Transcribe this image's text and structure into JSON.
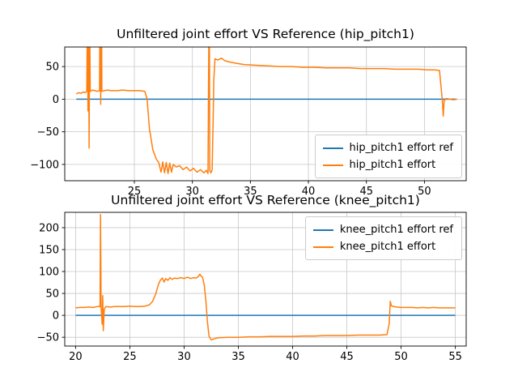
{
  "figure": {
    "background": "#ffffff",
    "grid_color": "#c8c8c8",
    "spine_color": "#000000"
  },
  "chart_data": [
    {
      "type": "line",
      "title": "Unfiltered joint effort VS Reference (hip_pitch1)",
      "xlabel": "",
      "ylabel": "",
      "xlim": [
        19.0,
        53.6
      ],
      "ylim": [
        -125,
        80
      ],
      "xticks": [
        25,
        30,
        35,
        40,
        45,
        50
      ],
      "yticks": [
        -100,
        -50,
        0,
        50
      ],
      "grid": true,
      "legend_position": "lower right",
      "series": [
        {
          "name": "hip_pitch1 effort ref",
          "color": "#1f77b4",
          "points": [
            [
              20.0,
              0
            ],
            [
              52.8,
              0
            ]
          ]
        },
        {
          "name": "hip_pitch1 effort",
          "color": "#ff7f0e",
          "points": [
            [
              20.0,
              8
            ],
            [
              20.2,
              10
            ],
            [
              20.4,
              9
            ],
            [
              20.6,
              11
            ],
            [
              20.75,
              10
            ],
            [
              20.9,
              12
            ],
            [
              20.95,
              130
            ],
            [
              21.0,
              -18
            ],
            [
              21.05,
              120
            ],
            [
              21.1,
              -75
            ],
            [
              21.15,
              130
            ],
            [
              21.2,
              12
            ],
            [
              21.4,
              14
            ],
            [
              21.6,
              13
            ],
            [
              21.8,
              12
            ],
            [
              22.0,
              13
            ],
            [
              22.05,
              200
            ],
            [
              22.1,
              -8
            ],
            [
              22.15,
              190
            ],
            [
              22.2,
              12
            ],
            [
              22.4,
              13
            ],
            [
              22.7,
              14
            ],
            [
              23.0,
              13
            ],
            [
              23.5,
              13
            ],
            [
              24.0,
              14
            ],
            [
              24.5,
              13
            ],
            [
              25.0,
              13
            ],
            [
              25.5,
              13
            ],
            [
              25.9,
              12
            ],
            [
              26.1,
              0
            ],
            [
              26.3,
              -45
            ],
            [
              26.6,
              -78
            ],
            [
              26.9,
              -92
            ],
            [
              27.1,
              -97
            ],
            [
              27.3,
              -112
            ],
            [
              27.45,
              -96
            ],
            [
              27.6,
              -113
            ],
            [
              27.75,
              -97
            ],
            [
              27.9,
              -114
            ],
            [
              28.05,
              -98
            ],
            [
              28.2,
              -112
            ],
            [
              28.35,
              -100
            ],
            [
              28.6,
              -104
            ],
            [
              28.9,
              -102
            ],
            [
              29.2,
              -108
            ],
            [
              29.5,
              -104
            ],
            [
              29.8,
              -110
            ],
            [
              30.1,
              -106
            ],
            [
              30.4,
              -112
            ],
            [
              30.7,
              -108
            ],
            [
              31.0,
              -113
            ],
            [
              31.2,
              -109
            ],
            [
              31.35,
              -114
            ],
            [
              31.45,
              200
            ],
            [
              31.5,
              -110
            ],
            [
              31.6,
              -113
            ],
            [
              31.7,
              -108
            ],
            [
              31.78,
              -40
            ],
            [
              31.85,
              30
            ],
            [
              31.95,
              62
            ],
            [
              32.2,
              60
            ],
            [
              32.5,
              63
            ],
            [
              32.8,
              59
            ],
            [
              33.2,
              57
            ],
            [
              33.8,
              55
            ],
            [
              34.5,
              53
            ],
            [
              35.5,
              52
            ],
            [
              36.5,
              51
            ],
            [
              37.5,
              50
            ],
            [
              38.5,
              50
            ],
            [
              39.5,
              49
            ],
            [
              40.5,
              49
            ],
            [
              41.5,
              48
            ],
            [
              42.5,
              48
            ],
            [
              43.5,
              48
            ],
            [
              44.5,
              47
            ],
            [
              45.5,
              47
            ],
            [
              46.5,
              47
            ],
            [
              47.5,
              46
            ],
            [
              48.5,
              46
            ],
            [
              49.5,
              46
            ],
            [
              50.3,
              45
            ],
            [
              50.9,
              45
            ],
            [
              51.3,
              44
            ],
            [
              51.45,
              15
            ],
            [
              51.55,
              -3
            ],
            [
              51.62,
              -26
            ],
            [
              51.7,
              -2
            ],
            [
              51.9,
              1
            ],
            [
              52.2,
              0
            ],
            [
              52.5,
              -1
            ],
            [
              52.8,
              0
            ]
          ]
        }
      ]
    },
    {
      "type": "line",
      "title": "Unfiltered joint effort VS Reference (knee_pitch1)",
      "xlabel": "",
      "ylabel": "",
      "xlim": [
        19.0,
        56.0
      ],
      "ylim": [
        -70,
        235
      ],
      "xticks": [
        20,
        25,
        30,
        35,
        40,
        45,
        50,
        55
      ],
      "yticks": [
        -50,
        0,
        50,
        100,
        150,
        200
      ],
      "grid": true,
      "legend_position": "upper right",
      "series": [
        {
          "name": "knee_pitch1 effort ref",
          "color": "#1f77b4",
          "points": [
            [
              20.0,
              0
            ],
            [
              55.0,
              0
            ]
          ]
        },
        {
          "name": "knee_pitch1 effort",
          "color": "#ff7f0e",
          "points": [
            [
              20.0,
              17
            ],
            [
              20.4,
              18
            ],
            [
              20.8,
              18
            ],
            [
              21.2,
              19
            ],
            [
              21.6,
              18
            ],
            [
              22.0,
              20
            ],
            [
              22.25,
              20
            ],
            [
              22.3,
              230
            ],
            [
              22.35,
              18
            ],
            [
              22.45,
              -20
            ],
            [
              22.5,
              45
            ],
            [
              22.55,
              -35
            ],
            [
              22.65,
              15
            ],
            [
              22.8,
              20
            ],
            [
              23.2,
              19
            ],
            [
              23.6,
              20
            ],
            [
              24.0,
              20
            ],
            [
              24.5,
              20
            ],
            [
              25.0,
              21
            ],
            [
              25.5,
              20
            ],
            [
              26.0,
              20
            ],
            [
              26.4,
              21
            ],
            [
              26.8,
              24
            ],
            [
              27.1,
              32
            ],
            [
              27.4,
              50
            ],
            [
              27.6,
              68
            ],
            [
              27.8,
              80
            ],
            [
              28.0,
              85
            ],
            [
              28.15,
              76
            ],
            [
              28.3,
              84
            ],
            [
              28.5,
              80
            ],
            [
              28.7,
              86
            ],
            [
              28.9,
              82
            ],
            [
              29.1,
              85
            ],
            [
              29.4,
              84
            ],
            [
              29.7,
              86
            ],
            [
              30.0,
              84
            ],
            [
              30.3,
              87
            ],
            [
              30.6,
              84
            ],
            [
              30.9,
              86
            ],
            [
              31.1,
              85
            ],
            [
              31.3,
              88
            ],
            [
              31.45,
              94
            ],
            [
              31.55,
              90
            ],
            [
              31.7,
              87
            ],
            [
              31.85,
              70
            ],
            [
              32.0,
              35
            ],
            [
              32.15,
              -15
            ],
            [
              32.3,
              -48
            ],
            [
              32.5,
              -56
            ],
            [
              32.8,
              -53
            ],
            [
              33.2,
              -51
            ],
            [
              34.0,
              -50
            ],
            [
              35.0,
              -50
            ],
            [
              36.0,
              -49
            ],
            [
              37.0,
              -49
            ],
            [
              38.0,
              -48
            ],
            [
              39.0,
              -48
            ],
            [
              40.0,
              -48
            ],
            [
              41.0,
              -47
            ],
            [
              42.0,
              -47
            ],
            [
              43.0,
              -46
            ],
            [
              44.0,
              -46
            ],
            [
              45.0,
              -46
            ],
            [
              46.0,
              -45
            ],
            [
              47.0,
              -45
            ],
            [
              48.0,
              -45
            ],
            [
              48.7,
              -44
            ],
            [
              48.9,
              -20
            ],
            [
              49.0,
              32
            ],
            [
              49.1,
              22
            ],
            [
              49.3,
              20
            ],
            [
              49.6,
              19
            ],
            [
              50.0,
              18
            ],
            [
              50.5,
              18
            ],
            [
              51.0,
              18
            ],
            [
              51.5,
              17
            ],
            [
              52.0,
              18
            ],
            [
              52.5,
              17
            ],
            [
              53.0,
              18
            ],
            [
              53.5,
              17
            ],
            [
              54.0,
              17
            ],
            [
              54.5,
              17
            ],
            [
              55.0,
              17
            ]
          ]
        }
      ]
    }
  ]
}
